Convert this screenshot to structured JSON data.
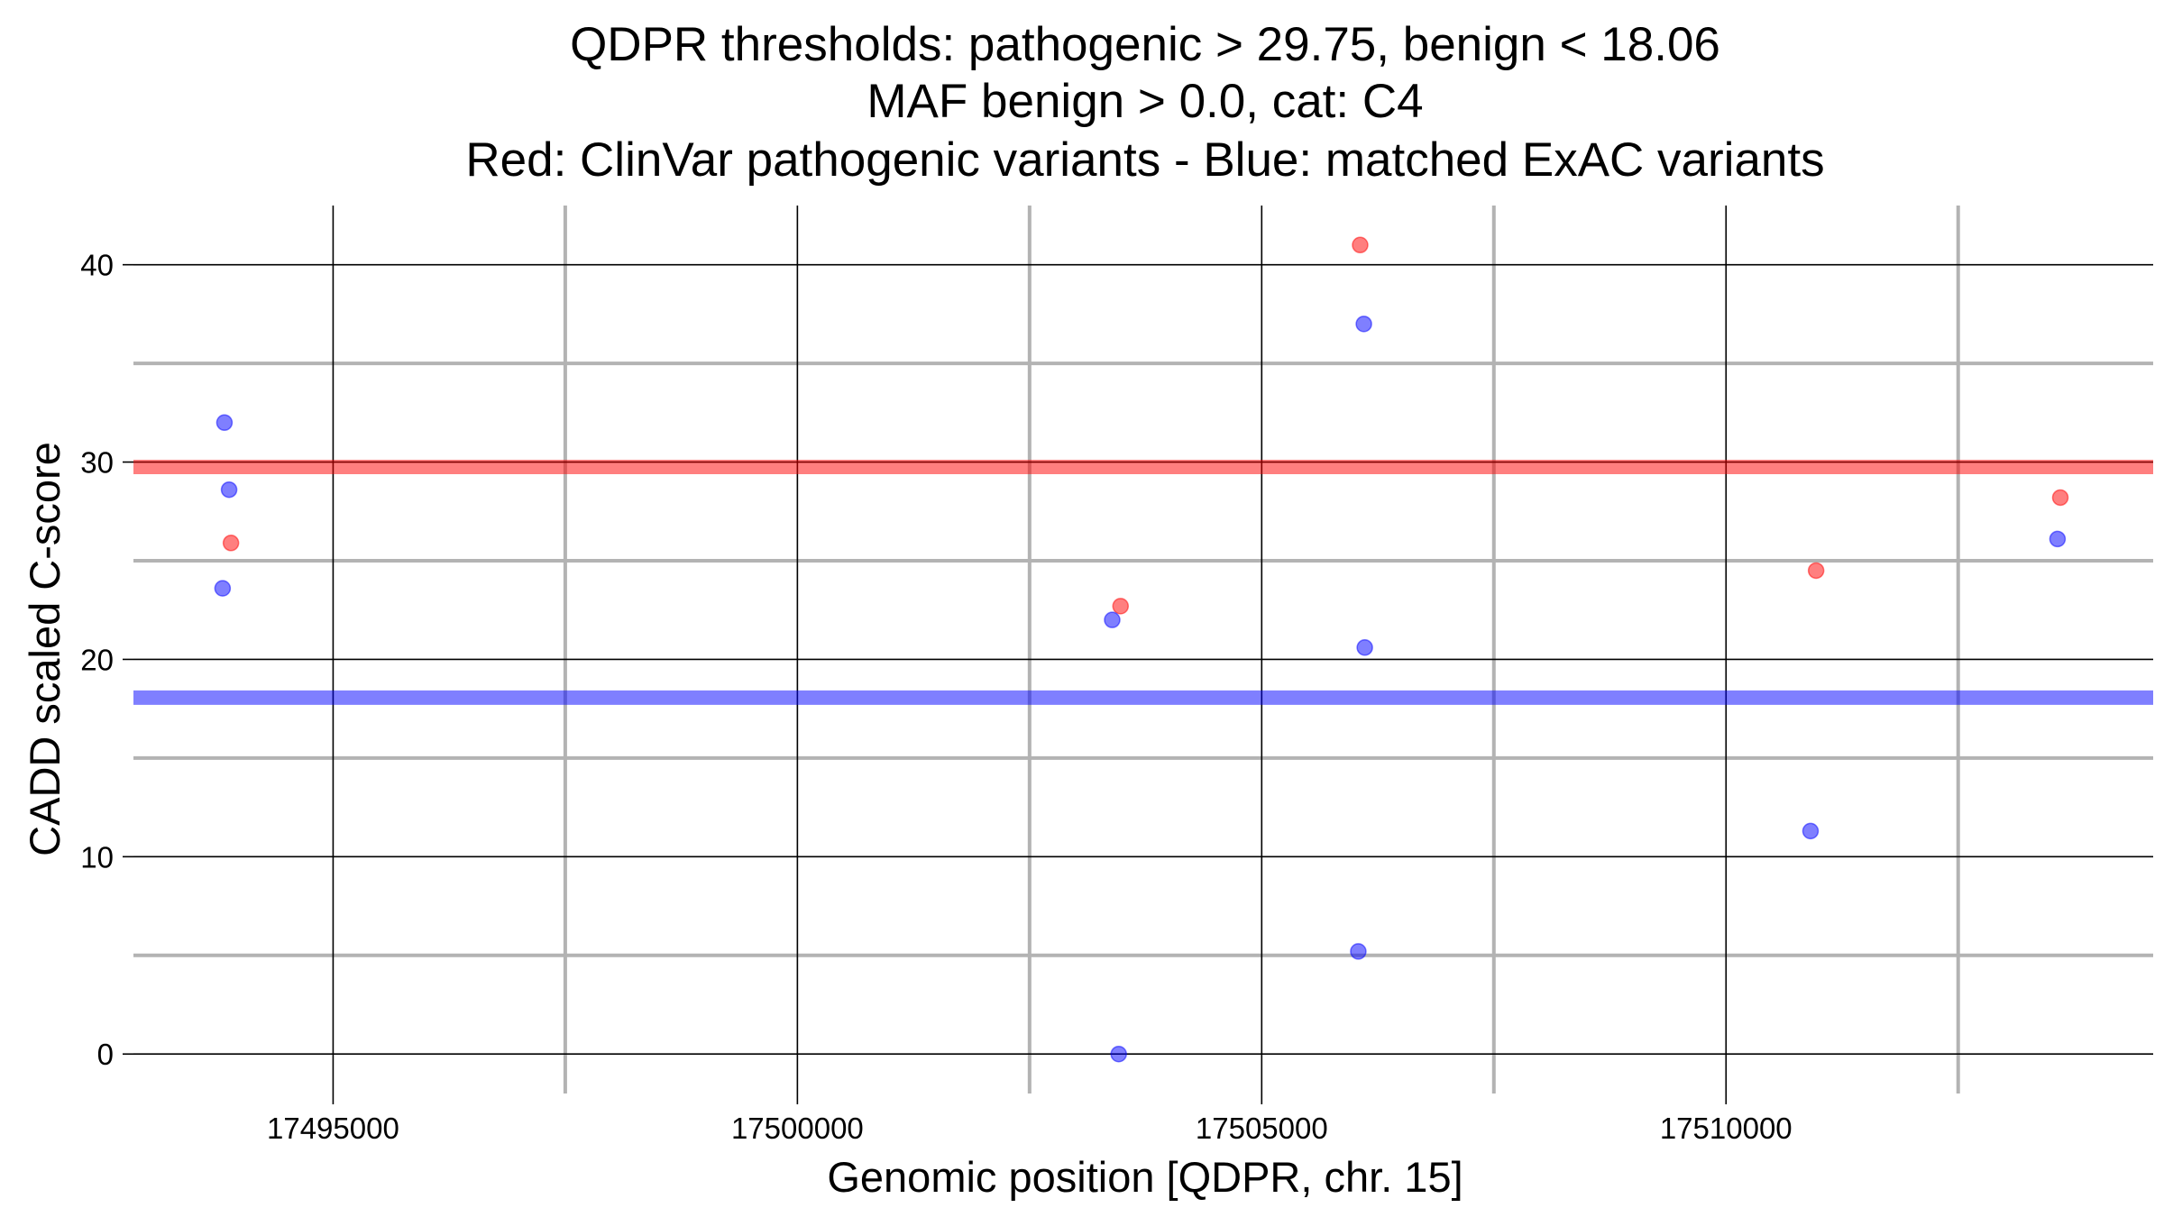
{
  "chart_data": {
    "type": "scatter",
    "title_lines": [
      "QDPR thresholds: pathogenic > 29.75, benign < 18.06",
      "MAF benign > 0.0, cat: C4",
      "Red: ClinVar pathogenic variants - Blue: matched ExAC variants"
    ],
    "xlabel": "Genomic position [QDPR, chr. 15]",
    "ylabel": "CADD scaled C-score",
    "xlim": [
      17492850,
      17514600
    ],
    "ylim": [
      -2,
      43
    ],
    "x_ticks": [
      17495000,
      17500000,
      17505000,
      17510000
    ],
    "x_minor": [
      17497500,
      17502500,
      17507500,
      17512500
    ],
    "y_ticks": [
      0,
      10,
      20,
      30,
      40
    ],
    "y_minor": [
      5,
      15,
      25,
      35
    ],
    "x_tick_labels": [
      "17495000",
      "17500000",
      "17505000",
      "17510000"
    ],
    "y_tick_labels": [
      "0",
      "10",
      "20",
      "30",
      "40"
    ],
    "grid": true,
    "thresholds": [
      {
        "name": "pathogenic",
        "value": 29.75,
        "color": "#ff0000"
      },
      {
        "name": "benign",
        "value": 18.06,
        "color": "#0000ff"
      }
    ],
    "series": [
      {
        "color": "#ff0000",
        "points": [
          {
            "x": 17493900,
            "y": 25.9
          },
          {
            "x": 17503480,
            "y": 22.7
          },
          {
            "x": 17506060,
            "y": 41.0
          },
          {
            "x": 17510970,
            "y": 24.5
          },
          {
            "x": 17513600,
            "y": 28.2
          }
        ]
      },
      {
        "color": "#0000ff",
        "points": [
          {
            "x": 17493830,
            "y": 32.0
          },
          {
            "x": 17493880,
            "y": 28.6
          },
          {
            "x": 17493810,
            "y": 23.6
          },
          {
            "x": 17503390,
            "y": 22.0
          },
          {
            "x": 17503460,
            "y": 0.0
          },
          {
            "x": 17506100,
            "y": 37.0
          },
          {
            "x": 17506110,
            "y": 20.6
          },
          {
            "x": 17506040,
            "y": 5.2
          },
          {
            "x": 17510910,
            "y": 11.3
          },
          {
            "x": 17513570,
            "y": 26.1
          }
        ]
      }
    ]
  }
}
